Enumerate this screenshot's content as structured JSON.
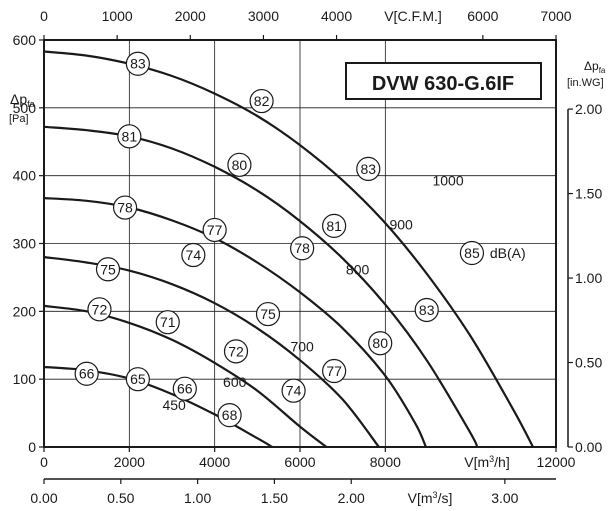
{
  "chart_data": {
    "type": "line",
    "title": "DVW 630-G.6IF",
    "x_bottom": {
      "label": "V[m³/h]",
      "ticks": [
        "0",
        "2000",
        "4000",
        "6000",
        "8000",
        "12000"
      ],
      "range": [
        0,
        12000
      ]
    },
    "x_top": {
      "label": "V[C.F.M.]",
      "ticks": [
        "0",
        "1000",
        "2000",
        "3000",
        "4000",
        "6000",
        "7000"
      ],
      "range": [
        0,
        7000
      ]
    },
    "x_secondary_bottom": {
      "label": "V[m³/s]",
      "ticks": [
        "0.00",
        "0.50",
        "1.00",
        "1.50",
        "2.00",
        "3.00"
      ],
      "range": [
        0,
        3.333
      ]
    },
    "y_left": {
      "label_line1": "Δp",
      "label_sub": "fa",
      "label_unit": "[Pa]",
      "ticks": [
        "0",
        "100",
        "200",
        "300",
        "400",
        "500",
        "600"
      ],
      "range": [
        0,
        600
      ]
    },
    "y_right": {
      "label_line1": "Δp",
      "label_sub": "fa",
      "label_unit": "[in.WG]",
      "ticks": [
        "0.00",
        "0.50",
        "1.00",
        "1.50",
        "2.00"
      ],
      "range": [
        0,
        2.409
      ]
    },
    "grid": true,
    "series": [
      {
        "name": "450",
        "points": [
          [
            0,
            118
          ],
          [
            1000,
            113
          ],
          [
            2000,
            101
          ],
          [
            3000,
            78
          ],
          [
            4000,
            48
          ],
          [
            5000,
            13
          ],
          [
            5350,
            0
          ]
        ]
      },
      {
        "name": "600",
        "points": [
          [
            0,
            208
          ],
          [
            1000,
            200
          ],
          [
            2000,
            183
          ],
          [
            3000,
            158
          ],
          [
            4000,
            124
          ],
          [
            5000,
            83
          ],
          [
            6000,
            30
          ],
          [
            6620,
            0
          ]
        ]
      },
      {
        "name": "700",
        "points": [
          [
            0,
            280
          ],
          [
            1000,
            272
          ],
          [
            2000,
            260
          ],
          [
            3000,
            240
          ],
          [
            4000,
            212
          ],
          [
            5000,
            175
          ],
          [
            6000,
            128
          ],
          [
            7000,
            70
          ],
          [
            7850,
            0
          ]
        ]
      },
      {
        "name": "800",
        "points": [
          [
            0,
            367
          ],
          [
            1000,
            363
          ],
          [
            2000,
            353
          ],
          [
            3000,
            334
          ],
          [
            4000,
            308
          ],
          [
            5000,
            272
          ],
          [
            6000,
            228
          ],
          [
            7000,
            175
          ],
          [
            8000,
            105
          ],
          [
            8700,
            35
          ],
          [
            8950,
            0
          ]
        ]
      },
      {
        "name": "900",
        "points": [
          [
            0,
            472
          ],
          [
            1000,
            467
          ],
          [
            2000,
            458
          ],
          [
            3000,
            440
          ],
          [
            4000,
            413
          ],
          [
            5000,
            378
          ],
          [
            6000,
            333
          ],
          [
            7000,
            278
          ],
          [
            8000,
            210
          ],
          [
            9000,
            125
          ],
          [
            10000,
            20
          ],
          [
            10150,
            0
          ]
        ]
      },
      {
        "name": "1000",
        "points": [
          [
            0,
            583
          ],
          [
            1000,
            577
          ],
          [
            2000,
            565
          ],
          [
            3000,
            547
          ],
          [
            4000,
            521
          ],
          [
            5000,
            488
          ],
          [
            6000,
            445
          ],
          [
            7000,
            393
          ],
          [
            8000,
            330
          ],
          [
            9000,
            253
          ],
          [
            10000,
            163
          ],
          [
            11000,
            55
          ],
          [
            11460,
            0
          ]
        ]
      }
    ],
    "noise_labels": [
      {
        "text": "83",
        "x": 2200,
        "y": 565
      },
      {
        "text": "82",
        "x": 5100,
        "y": 510
      },
      {
        "text": "83",
        "x": 7600,
        "y": 410
      },
      {
        "text": "85",
        "x": 10030,
        "y": 286
      },
      {
        "text": "81",
        "x": 2000,
        "y": 458
      },
      {
        "text": "80",
        "x": 4580,
        "y": 416
      },
      {
        "text": "81",
        "x": 6800,
        "y": 326
      },
      {
        "text": "83",
        "x": 8970,
        "y": 202
      },
      {
        "text": "78",
        "x": 1900,
        "y": 353
      },
      {
        "text": "77",
        "x": 4000,
        "y": 320
      },
      {
        "text": "78",
        "x": 6050,
        "y": 293
      },
      {
        "text": "80",
        "x": 7880,
        "y": 153
      },
      {
        "text": "75",
        "x": 1500,
        "y": 262
      },
      {
        "text": "74",
        "x": 3500,
        "y": 283
      },
      {
        "text": "75",
        "x": 5250,
        "y": 196
      },
      {
        "text": "77",
        "x": 6800,
        "y": 112
      },
      {
        "text": "72",
        "x": 1300,
        "y": 203
      },
      {
        "text": "71",
        "x": 2900,
        "y": 184
      },
      {
        "text": "72",
        "x": 4500,
        "y": 141
      },
      {
        "text": "74",
        "x": 5850,
        "y": 83
      },
      {
        "text": "66",
        "x": 1000,
        "y": 108
      },
      {
        "text": "65",
        "x": 2200,
        "y": 100
      },
      {
        "text": "66",
        "x": 3300,
        "y": 86
      },
      {
        "text": "68",
        "x": 4350,
        "y": 47
      }
    ],
    "speed_labels": [
      {
        "text": "1000",
        "x": 9470,
        "y": 393
      },
      {
        "text": "900",
        "x": 8370,
        "y": 328
      },
      {
        "text": "800",
        "x": 7350,
        "y": 262
      },
      {
        "text": "700",
        "x": 6050,
        "y": 148
      },
      {
        "text": "600",
        "x": 4470,
        "y": 96
      },
      {
        "text": "450",
        "x": 3050,
        "y": 62
      }
    ],
    "unit_label": {
      "text": "dB(A)",
      "x": 10870,
      "y": 286
    }
  }
}
